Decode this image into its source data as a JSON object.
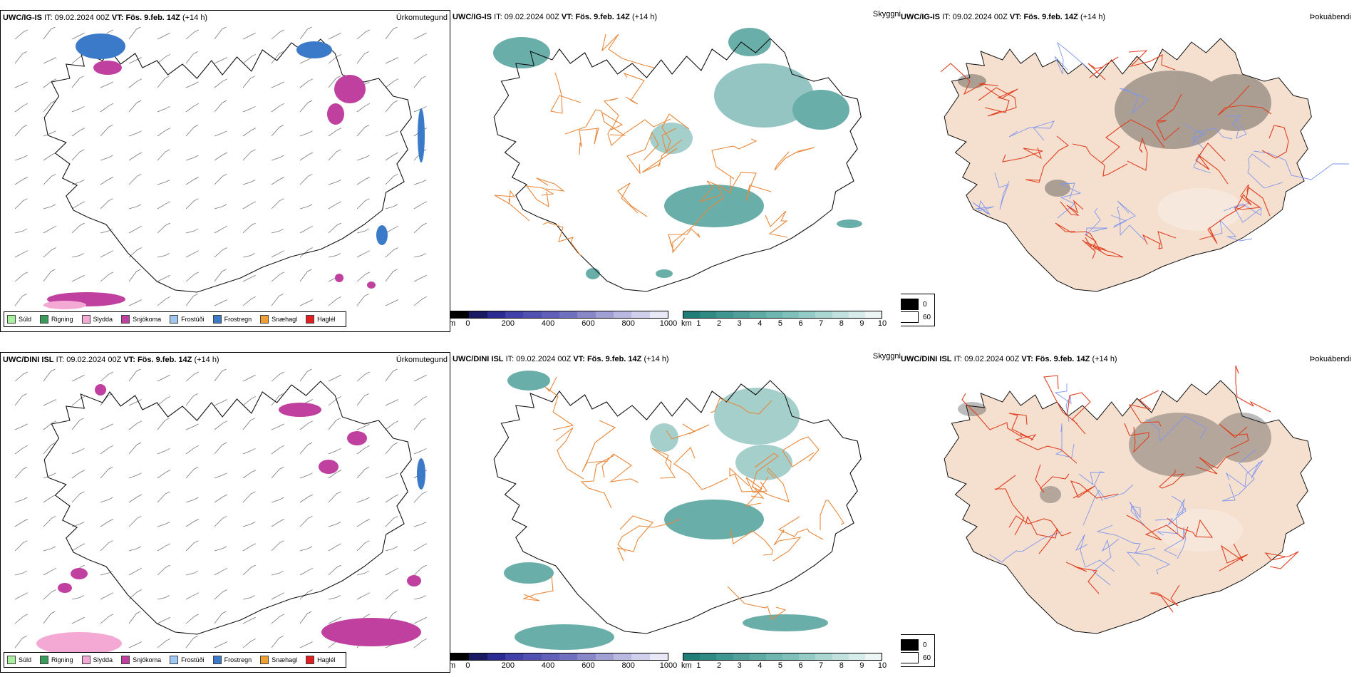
{
  "rows": [
    {
      "model": "UWC/IG-IS",
      "it_label": "IT:",
      "it_value": "09.02.2024 00Z",
      "vt_label": "VT:",
      "vt_value": "Fös. 9.feb. 14Z",
      "lead": "(+14 h)",
      "precip_title": "Úrkomutegund",
      "vis_title": "Skyggni",
      "fog_title": "Þokuábendi"
    },
    {
      "model": "UWC/DINI ISL",
      "it_label": "IT:",
      "it_value": "09.02.2024 00Z",
      "vt_label": "VT:",
      "vt_value": "Fös. 9.feb. 14Z",
      "lead": "(+14 h)",
      "precip_title": "Úrkomutegund",
      "vis_title": "Skyggni",
      "fog_title": "Þokuábendi"
    }
  ],
  "precip_legend": [
    {
      "label": "Súld",
      "color": "#a8f0a0"
    },
    {
      "label": "Rigning",
      "color": "#3a9a58"
    },
    {
      "label": "Slydda",
      "color": "#f4a8d4"
    },
    {
      "label": "Snjókoma",
      "color": "#c040a0"
    },
    {
      "label": "Frostúði",
      "color": "#9ec8f0"
    },
    {
      "label": "Frostregn",
      "color": "#3a7ac8"
    },
    {
      "label": "Snæhagl",
      "color": "#f0a030"
    },
    {
      "label": "Haglél",
      "color": "#e02020"
    }
  ],
  "cbar_m": {
    "unit": "m",
    "ticks": [
      "0",
      "200",
      "400",
      "600",
      "800",
      "1000"
    ],
    "colors": [
      "#000000",
      "#1a1a60",
      "#2a2a90",
      "#4040a8",
      "#5050b0",
      "#6060b8",
      "#7070c0",
      "#8888c8",
      "#a0a0d4",
      "#b8b8e0",
      "#d0d0ec",
      "#e8e8f6"
    ]
  },
  "cbar_km": {
    "unit": "km",
    "ticks": [
      "1",
      "2",
      "3",
      "4",
      "5",
      "6",
      "7",
      "8",
      "9",
      "10"
    ],
    "colors": [
      "#1f7f78",
      "#2f8a84",
      "#3f958f",
      "#4fa09a",
      "#5faba5",
      "#6fb6b0",
      "#80c0bb",
      "#95cbc7",
      "#aad6d2",
      "#c0e1de",
      "#d6ecea",
      "#ecf6f5"
    ]
  },
  "shade_legend": {
    "values": [
      "0",
      "60"
    ]
  },
  "colors": {
    "coast": "#000000",
    "roads_orange": "#e8883a",
    "roads_red": "#e04020",
    "rivers": "#7f96ee",
    "land_fill": "#f5e0d0",
    "teal": "#2f8a84",
    "magenta": "#c040a0",
    "blue": "#3a7ac8"
  }
}
